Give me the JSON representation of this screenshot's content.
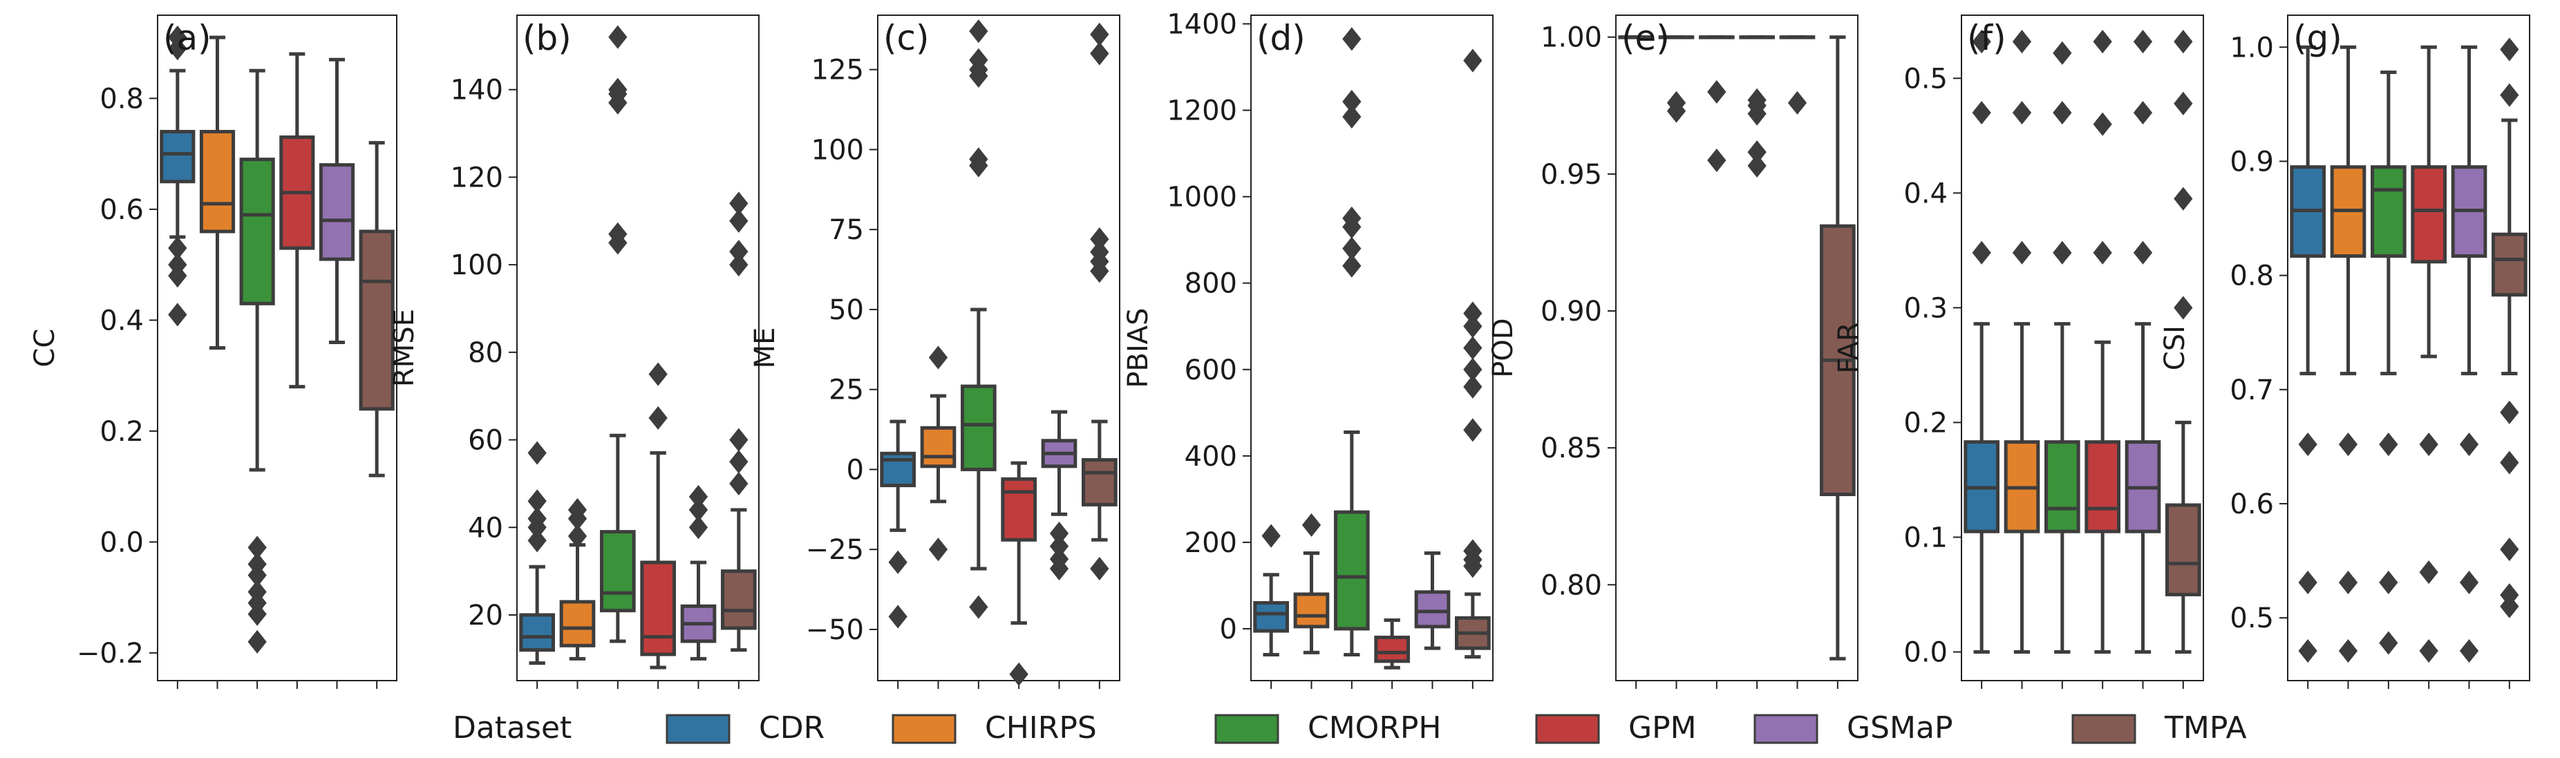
{
  "chart_data": [
    {
      "type": "box",
      "panel": "(a)",
      "ylabel": "CC",
      "yrange": [
        -0.25,
        0.95
      ],
      "yticks": [
        -0.2,
        0.0,
        0.2,
        0.4,
        0.6,
        0.8
      ],
      "tick_labels": [
        "−0.2",
        "0.0",
        "0.2",
        "0.4",
        "0.6",
        "0.8"
      ],
      "boxes": [
        {
          "name": "CDR",
          "whislo": 0.55,
          "q1": 0.65,
          "med": 0.7,
          "q3": 0.74,
          "whishi": 0.85,
          "fliers": [
            0.53,
            0.5,
            0.48,
            0.41,
            0.89,
            0.91
          ]
        },
        {
          "name": "CHIRPS",
          "whislo": 0.35,
          "q1": 0.56,
          "med": 0.61,
          "q3": 0.74,
          "whishi": 0.91,
          "fliers": []
        },
        {
          "name": "CMORPH",
          "whislo": 0.13,
          "q1": 0.43,
          "med": 0.59,
          "q3": 0.69,
          "whishi": 0.85,
          "fliers": [
            -0.01,
            -0.04,
            -0.06,
            -0.09,
            -0.11,
            -0.13,
            -0.18
          ]
        },
        {
          "name": "GPM",
          "whislo": 0.28,
          "q1": 0.53,
          "med": 0.63,
          "q3": 0.73,
          "whishi": 0.88,
          "fliers": []
        },
        {
          "name": "GSMaP",
          "whislo": 0.36,
          "q1": 0.51,
          "med": 0.58,
          "q3": 0.68,
          "whishi": 0.87,
          "fliers": []
        },
        {
          "name": "TMPA",
          "whislo": 0.12,
          "q1": 0.24,
          "med": 0.47,
          "q3": 0.56,
          "whishi": 0.72,
          "fliers": []
        }
      ]
    },
    {
      "type": "box",
      "panel": "(b)",
      "ylabel": "RMSE",
      "yrange": [
        5,
        157
      ],
      "yticks": [
        20,
        40,
        60,
        80,
        100,
        120,
        140
      ],
      "tick_labels": [
        "20",
        "40",
        "60",
        "80",
        "100",
        "120",
        "140"
      ],
      "boxes": [
        {
          "name": "CDR",
          "whislo": 9,
          "q1": 12,
          "med": 15,
          "q3": 20,
          "whishi": 31,
          "fliers": [
            37,
            40,
            42,
            46,
            57
          ]
        },
        {
          "name": "CHIRPS",
          "whislo": 10,
          "q1": 13,
          "med": 17,
          "q3": 23,
          "whishi": 36,
          "fliers": [
            38,
            42,
            44
          ]
        },
        {
          "name": "CMORPH",
          "whislo": 14,
          "q1": 21,
          "med": 25,
          "q3": 39,
          "whishi": 61,
          "fliers": [
            105,
            107,
            137,
            139,
            140,
            152
          ]
        },
        {
          "name": "GPM",
          "whislo": 8,
          "q1": 11,
          "med": 15,
          "q3": 32,
          "whishi": 57,
          "fliers": [
            65,
            75
          ]
        },
        {
          "name": "GSMaP",
          "whislo": 10,
          "q1": 14,
          "med": 18,
          "q3": 22,
          "whishi": 32,
          "fliers": [
            40,
            44,
            47
          ]
        },
        {
          "name": "TMPA",
          "whislo": 12,
          "q1": 17,
          "med": 21,
          "q3": 30,
          "whishi": 44,
          "fliers": [
            50,
            55,
            60,
            100,
            103,
            110,
            114
          ]
        }
      ]
    },
    {
      "type": "box",
      "panel": "(c)",
      "ylabel": "ME",
      "yrange": [
        -66,
        142
      ],
      "yticks": [
        -50,
        -25,
        0,
        25,
        50,
        75,
        100,
        125
      ],
      "tick_labels": [
        "−50",
        "−25",
        "0",
        "25",
        "50",
        "75",
        "100",
        "125"
      ],
      "boxes": [
        {
          "name": "CDR",
          "whislo": -19,
          "q1": -5,
          "med": 3,
          "q3": 5,
          "whishi": 15,
          "fliers": [
            -29,
            -46
          ]
        },
        {
          "name": "CHIRPS",
          "whislo": -10,
          "q1": 1,
          "med": 4,
          "q3": 13,
          "whishi": 23,
          "fliers": [
            -25,
            35
          ]
        },
        {
          "name": "CMORPH",
          "whislo": -31,
          "q1": 0,
          "med": 14,
          "q3": 26,
          "whishi": 50,
          "fliers": [
            -43,
            95,
            97,
            123,
            125,
            128,
            137
          ]
        },
        {
          "name": "GPM",
          "whislo": -48,
          "q1": -22,
          "med": -7,
          "q3": -3,
          "whishi": 2,
          "fliers": [
            -64
          ]
        },
        {
          "name": "GSMaP",
          "whislo": -14,
          "q1": 1,
          "med": 5,
          "q3": 9,
          "whishi": 18,
          "fliers": [
            -20,
            -24,
            -28,
            -31
          ]
        },
        {
          "name": "TMPA",
          "whislo": -22,
          "q1": -11,
          "med": -1,
          "q3": 3,
          "whishi": 15,
          "fliers": [
            -31,
            62,
            65,
            68,
            72,
            130,
            136
          ]
        }
      ]
    },
    {
      "type": "box",
      "panel": "(d)",
      "ylabel": "PBIAS",
      "yrange": [
        -120,
        1420
      ],
      "yticks": [
        0,
        200,
        400,
        600,
        800,
        1000,
        1200,
        1400
      ],
      "tick_labels": [
        "0",
        "200",
        "400",
        "600",
        "800",
        "1000",
        "1200",
        "1400"
      ],
      "boxes": [
        {
          "name": "CDR",
          "whislo": -60,
          "q1": -5,
          "med": 35,
          "q3": 60,
          "whishi": 125,
          "fliers": [
            215
          ]
        },
        {
          "name": "CHIRPS",
          "whislo": -55,
          "q1": 5,
          "med": 30,
          "q3": 80,
          "whishi": 175,
          "fliers": [
            240
          ]
        },
        {
          "name": "CMORPH",
          "whislo": -60,
          "q1": 0,
          "med": 120,
          "q3": 270,
          "whishi": 455,
          "fliers": [
            840,
            880,
            930,
            950,
            1185,
            1220,
            1365
          ]
        },
        {
          "name": "GPM",
          "whislo": -90,
          "q1": -75,
          "med": -55,
          "q3": -20,
          "whishi": 20,
          "fliers": []
        },
        {
          "name": "GSMaP",
          "whislo": -45,
          "q1": 5,
          "med": 40,
          "q3": 85,
          "whishi": 175,
          "fliers": []
        },
        {
          "name": "TMPA",
          "whislo": -65,
          "q1": -45,
          "med": -10,
          "q3": 25,
          "whishi": 80,
          "fliers": [
            145,
            160,
            180,
            460,
            560,
            600,
            650,
            700,
            730,
            1315
          ]
        }
      ]
    },
    {
      "type": "box",
      "panel": "(e)",
      "ylabel": "POD",
      "yrange": [
        0.765,
        1.008
      ],
      "yticks": [
        0.8,
        0.85,
        0.9,
        0.95,
        1.0
      ],
      "tick_labels": [
        "0.80",
        "0.85",
        "0.90",
        "0.95",
        "1.00"
      ],
      "boxes": [
        {
          "name": "CDR",
          "whislo": 1.0,
          "q1": 1.0,
          "med": 1.0,
          "q3": 1.0,
          "whishi": 1.0,
          "fliers": []
        },
        {
          "name": "CHIRPS",
          "whislo": 1.0,
          "q1": 1.0,
          "med": 1.0,
          "q3": 1.0,
          "whishi": 1.0,
          "fliers": [
            0.976,
            0.973
          ]
        },
        {
          "name": "CMORPH",
          "whislo": 1.0,
          "q1": 1.0,
          "med": 1.0,
          "q3": 1.0,
          "whishi": 1.0,
          "fliers": [
            0.98,
            0.955
          ]
        },
        {
          "name": "GPM",
          "whislo": 1.0,
          "q1": 1.0,
          "med": 1.0,
          "q3": 1.0,
          "whishi": 1.0,
          "fliers": [
            0.977,
            0.975,
            0.972,
            0.958,
            0.953
          ]
        },
        {
          "name": "GSMaP",
          "whislo": 1.0,
          "q1": 1.0,
          "med": 1.0,
          "q3": 1.0,
          "whishi": 1.0,
          "fliers": [
            0.976
          ]
        },
        {
          "name": "TMPA",
          "whislo": 0.773,
          "q1": 0.833,
          "med": 0.882,
          "q3": 0.931,
          "whishi": 1.0,
          "fliers": []
        }
      ]
    },
    {
      "type": "box",
      "panel": "(f)",
      "ylabel": "FAR",
      "yrange": [
        -0.025,
        0.555
      ],
      "yticks": [
        0.0,
        0.1,
        0.2,
        0.3,
        0.4,
        0.5
      ],
      "tick_labels": [
        "0.0",
        "0.1",
        "0.2",
        "0.3",
        "0.4",
        "0.5"
      ],
      "boxes": [
        {
          "name": "CDR",
          "whislo": 0.0,
          "q1": 0.105,
          "med": 0.143,
          "q3": 0.183,
          "whishi": 0.286,
          "fliers": [
            0.348,
            0.47,
            0.532
          ]
        },
        {
          "name": "CHIRPS",
          "whislo": 0.0,
          "q1": 0.105,
          "med": 0.143,
          "q3": 0.183,
          "whishi": 0.286,
          "fliers": [
            0.348,
            0.47,
            0.532
          ]
        },
        {
          "name": "CMORPH",
          "whislo": 0.0,
          "q1": 0.105,
          "med": 0.125,
          "q3": 0.183,
          "whishi": 0.286,
          "fliers": [
            0.348,
            0.47,
            0.522
          ]
        },
        {
          "name": "GPM",
          "whislo": 0.0,
          "q1": 0.105,
          "med": 0.125,
          "q3": 0.183,
          "whishi": 0.27,
          "fliers": [
            0.348,
            0.46,
            0.532
          ]
        },
        {
          "name": "GSMaP",
          "whislo": 0.0,
          "q1": 0.105,
          "med": 0.143,
          "q3": 0.183,
          "whishi": 0.286,
          "fliers": [
            0.348,
            0.47,
            0.532
          ]
        },
        {
          "name": "TMPA",
          "whislo": 0.0,
          "q1": 0.05,
          "med": 0.077,
          "q3": 0.128,
          "whishi": 0.2,
          "fliers": [
            0.3,
            0.395,
            0.478,
            0.532
          ]
        }
      ]
    },
    {
      "type": "box",
      "panel": "(g)",
      "ylabel": "CSI",
      "yrange": [
        0.445,
        1.028
      ],
      "yticks": [
        0.5,
        0.6,
        0.7,
        0.8,
        0.9,
        1.0
      ],
      "tick_labels": [
        "0.5",
        "0.6",
        "0.7",
        "0.8",
        "0.9",
        "1.0"
      ],
      "boxes": [
        {
          "name": "CDR",
          "whislo": 0.714,
          "q1": 0.817,
          "med": 0.857,
          "q3": 0.895,
          "whishi": 1.0,
          "fliers": [
            0.652,
            0.531,
            0.471
          ]
        },
        {
          "name": "CHIRPS",
          "whislo": 0.714,
          "q1": 0.817,
          "med": 0.857,
          "q3": 0.895,
          "whishi": 1.0,
          "fliers": [
            0.652,
            0.531,
            0.471
          ]
        },
        {
          "name": "CMORPH",
          "whislo": 0.714,
          "q1": 0.817,
          "med": 0.875,
          "q3": 0.895,
          "whishi": 0.978,
          "fliers": [
            0.652,
            0.531,
            0.478
          ]
        },
        {
          "name": "GPM",
          "whislo": 0.729,
          "q1": 0.812,
          "med": 0.857,
          "q3": 0.895,
          "whishi": 1.0,
          "fliers": [
            0.652,
            0.54,
            0.471
          ]
        },
        {
          "name": "GSMaP",
          "whislo": 0.714,
          "q1": 0.817,
          "med": 0.857,
          "q3": 0.895,
          "whishi": 1.0,
          "fliers": [
            0.652,
            0.531,
            0.471
          ]
        },
        {
          "name": "TMPA",
          "whislo": 0.714,
          "q1": 0.783,
          "med": 0.814,
          "q3": 0.836,
          "whishi": 0.936,
          "fliers": [
            0.958,
            0.998,
            0.68,
            0.636,
            0.56,
            0.52,
            0.51
          ]
        }
      ]
    }
  ],
  "legend": {
    "title": "Dataset",
    "items": [
      {
        "label": "CDR",
        "color": "#3274a1"
      },
      {
        "label": "CHIRPS",
        "color": "#e1812c"
      },
      {
        "label": "CMORPH",
        "color": "#3a923a"
      },
      {
        "label": "GPM",
        "color": "#c03d3e"
      },
      {
        "label": "GSMaP",
        "color": "#9372b2"
      },
      {
        "label": "TMPA",
        "color": "#845b53"
      }
    ]
  }
}
